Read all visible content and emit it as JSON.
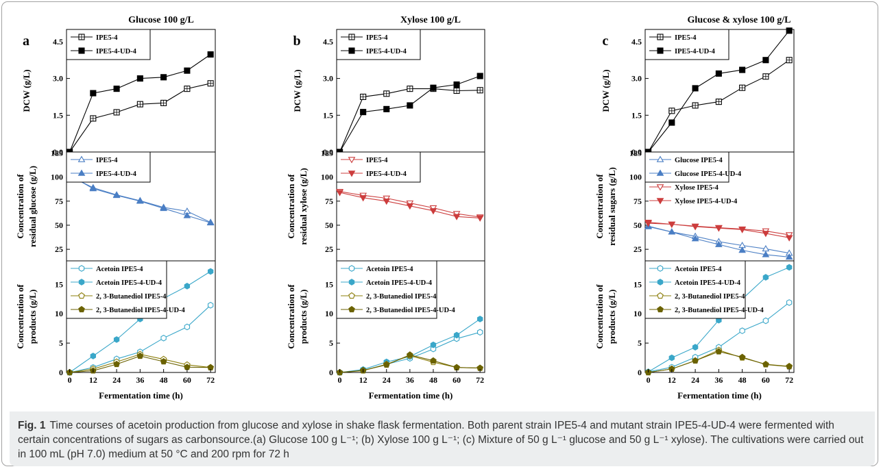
{
  "caption": {
    "label": "Fig. 1",
    "text": "Time courses of acetoin production from glucose and xylose in shake flask fermentation. Both parent strain IPE5-4 and mutant strain IPE5-4-UD-4 were fermented with certain concentrations of sugars as carbonsource.(a) Glucose 100 g L⁻¹; (b) Xylose 100 g L⁻¹; (c) Mixture of 50 g L⁻¹ glucose and 50 g L⁻¹ xylose). The cultivations were carried out in 100 mL (pH 7.0) medium at 50 °C and 200 rpm for 72 h"
  },
  "colors": {
    "black": "#000000",
    "blue": "#4a7ec4",
    "red": "#cc3d3d",
    "cyan": "#3aa7c9",
    "olive": "#8b7d0a",
    "olive_fill": "#6b6200"
  },
  "chart_data": [
    {
      "panel": "a",
      "title": "Glucose 100 g/L",
      "xlabel": "Fermentation time (h)",
      "x": [
        0,
        12,
        24,
        36,
        48,
        60,
        72
      ],
      "xticks": [
        "0",
        "12",
        "24",
        "36",
        "48",
        "60",
        "72"
      ],
      "subplots": [
        {
          "type": "line",
          "ylabel": [
            "DCW (g/L)"
          ],
          "ylim": [
            0,
            5
          ],
          "yticks": [
            "0.0",
            "1.5",
            "3.0",
            "4.5"
          ],
          "series": [
            {
              "name": "IPE5-4",
              "color": "#000000",
              "marker": "square-open",
              "values": [
                0,
                1.37,
                1.62,
                1.95,
                2.0,
                2.58,
                2.8
              ]
            },
            {
              "name": "IPE5-4-UD-4",
              "color": "#000000",
              "marker": "square-filled",
              "values": [
                0,
                2.4,
                2.58,
                3.0,
                3.05,
                3.32,
                3.98
              ]
            }
          ]
        },
        {
          "type": "line",
          "ylabel": [
            "Concentration of",
            "residual glucose (g/L)"
          ],
          "ylim": [
            13,
            126
          ],
          "yticks": [
            "25",
            "50",
            "75",
            "100",
            "125"
          ],
          "series": [
            {
              "name": "IPE5-4",
              "color": "#4a7ec4",
              "marker": "triangle-open",
              "values": [
                101,
                89,
                81.5,
                75.5,
                68.5,
                64.5,
                53
              ]
            },
            {
              "name": "IPE5-4-UD-4",
              "color": "#4a7ec4",
              "marker": "triangle-filled",
              "values": [
                102,
                88,
                81,
                75,
                67.5,
                60,
                52.5
              ]
            }
          ]
        },
        {
          "type": "line",
          "ylabel": [
            "Concentration of",
            "products (g/L)"
          ],
          "ylim": [
            0,
            19
          ],
          "yticks": [
            "0",
            "5",
            "10",
            "15"
          ],
          "series": [
            {
              "name": "Acetoin IPE5-4",
              "color": "#3aa7c9",
              "marker": "hexagon-open",
              "values": [
                0,
                0.85,
                2.3,
                3.5,
                5.85,
                7.75,
                11.45
              ]
            },
            {
              "name": "Acetoin IPE5-4-UD-4",
              "color": "#3aa7c9",
              "marker": "hexagon-filled",
              "values": [
                0,
                2.8,
                5.6,
                9.1,
                12.6,
                14.7,
                17.2
              ]
            },
            {
              "name": "2, 3-Butanediol IPE5-4",
              "color": "#8b7d0a",
              "marker": "pentagon-open",
              "values": [
                0,
                0.6,
                1.8,
                3.1,
                2.25,
                1.3,
                0.85
              ]
            },
            {
              "name": "2, 3-Butanediol IPE5-4-UD-4",
              "color": "#6b6200",
              "marker": "pentagon-filled",
              "values": [
                0,
                0.3,
                1.4,
                2.8,
                1.85,
                0.9,
                0.85
              ]
            }
          ]
        }
      ]
    },
    {
      "panel": "b",
      "title": "Xylose 100 g/L",
      "xlabel": "Fermentation time (h)",
      "x": [
        0,
        12,
        24,
        36,
        48,
        60,
        72
      ],
      "xticks": [
        "0",
        "12",
        "24",
        "36",
        "48",
        "60",
        "72"
      ],
      "subplots": [
        {
          "type": "line",
          "ylabel": [
            "DCW (g/L)"
          ],
          "ylim": [
            0,
            5
          ],
          "yticks": [
            "0.0",
            "1.5",
            "3.0",
            "4.5"
          ],
          "series": [
            {
              "name": "IPE5-4",
              "color": "#000000",
              "marker": "square-open",
              "values": [
                0,
                2.25,
                2.38,
                2.58,
                2.58,
                2.5,
                2.52
              ]
            },
            {
              "name": "IPE5-4-UD-4",
              "color": "#000000",
              "marker": "square-filled",
              "values": [
                0,
                1.63,
                1.75,
                1.9,
                2.62,
                2.75,
                3.1
              ]
            }
          ]
        },
        {
          "type": "line",
          "ylabel": [
            "Concentration of",
            "residual xylose (g/L)"
          ],
          "ylim": [
            13,
            126
          ],
          "yticks": [
            "25",
            "50",
            "75",
            "100",
            "125"
          ],
          "series": [
            {
              "name": "IPE5-4",
              "color": "#cc3d3d",
              "marker": "triangle-down-open",
              "values": [
                85,
                81,
                78,
                73,
                68,
                62,
                58.5
              ]
            },
            {
              "name": "IPE5-4-UD-4",
              "color": "#cc3d3d",
              "marker": "triangle-down-filled",
              "values": [
                84,
                78.5,
                75,
                70,
                65,
                59,
                57.5
              ]
            }
          ]
        },
        {
          "type": "line",
          "ylabel": [
            "Concentration of",
            "products (g/L)"
          ],
          "ylim": [
            0,
            19
          ],
          "yticks": [
            "0",
            "5",
            "10",
            "15"
          ],
          "series": [
            {
              "name": "Acetoin IPE5-4",
              "color": "#3aa7c9",
              "marker": "hexagon-open",
              "values": [
                0,
                0.35,
                1.4,
                2.4,
                4.0,
                5.75,
                6.85
              ]
            },
            {
              "name": "Acetoin IPE5-4-UD-4",
              "color": "#3aa7c9",
              "marker": "hexagon-filled",
              "values": [
                0,
                0.5,
                1.8,
                2.7,
                4.7,
                6.35,
                9.1
              ]
            },
            {
              "name": "2, 3-Butanediol IPE5-4",
              "color": "#8b7d0a",
              "marker": "pentagon-open",
              "values": [
                0,
                0.3,
                1.4,
                2.85,
                1.75,
                0.85,
                0.75
              ]
            },
            {
              "name": "2, 3-Butanediol IPE5-4-UD-4",
              "color": "#6b6200",
              "marker": "pentagon-filled",
              "values": [
                0,
                0.35,
                1.3,
                3.0,
                2.0,
                0.85,
                0.75
              ]
            }
          ]
        }
      ]
    },
    {
      "panel": "c",
      "title": "Glucose & xylose 100 g/L",
      "xlabel": "Fermentation time (h)",
      "x": [
        0,
        12,
        24,
        36,
        48,
        60,
        72
      ],
      "xticks": [
        "0",
        "12",
        "24",
        "36",
        "48",
        "60",
        "72"
      ],
      "subplots": [
        {
          "type": "line",
          "ylabel": [
            "DCW (g/L)"
          ],
          "ylim": [
            0,
            5
          ],
          "yticks": [
            "0.0",
            "1.5",
            "3.0",
            "4.5"
          ],
          "series": [
            {
              "name": "IPE5-4",
              "color": "#000000",
              "marker": "square-open",
              "values": [
                0,
                1.68,
                1.9,
                2.05,
                2.62,
                3.08,
                3.75
              ]
            },
            {
              "name": "IPE5-4-UD-4",
              "color": "#000000",
              "marker": "square-filled",
              "values": [
                0,
                1.2,
                2.6,
                3.2,
                3.35,
                3.75,
                4.95
              ]
            }
          ]
        },
        {
          "type": "line",
          "ylabel": [
            "Concentration of",
            "residual sugars (g/L)"
          ],
          "ylim": [
            13,
            126
          ],
          "yticks": [
            "25",
            "50",
            "75",
            "100",
            "125"
          ],
          "series": [
            {
              "name": "Glucose IPE5-4",
              "color": "#4a7ec4",
              "marker": "triangle-open",
              "values": [
                48.5,
                43,
                38.5,
                33,
                29,
                25.5,
                21
              ]
            },
            {
              "name": "Glucose IPE5-4-UD-4",
              "color": "#4a7ec4",
              "marker": "triangle-filled",
              "values": [
                49,
                43,
                36,
                30,
                24,
                19.5,
                17
              ]
            },
            {
              "name": "Xylose IPE5-4",
              "color": "#cc3d3d",
              "marker": "triangle-down-open",
              "values": [
                52,
                51,
                49,
                47.5,
                46,
                44,
                40
              ]
            },
            {
              "name": "Xylose IPE5-4-UD-4",
              "color": "#cc3d3d",
              "marker": "triangle-down-filled",
              "values": [
                53,
                51,
                48.5,
                47,
                45.5,
                41.5,
                37
              ]
            }
          ]
        },
        {
          "type": "line",
          "ylabel": [
            "Concentration of",
            "products (g/L)"
          ],
          "ylim": [
            0,
            19
          ],
          "yticks": [
            "0",
            "5",
            "10",
            "15"
          ],
          "series": [
            {
              "name": "Acetoin IPE5-4",
              "color": "#3aa7c9",
              "marker": "hexagon-open",
              "values": [
                0.1,
                0.9,
                2.6,
                4.3,
                7.1,
                8.8,
                11.9
              ]
            },
            {
              "name": "Acetoin IPE5-4-UD-4",
              "color": "#3aa7c9",
              "marker": "hexagon-filled",
              "values": [
                0.1,
                2.5,
                4.3,
                8.9,
                12.5,
                16.2,
                17.9
              ]
            },
            {
              "name": "2, 3-Butanediol IPE5-4",
              "color": "#8b7d0a",
              "marker": "pentagon-open",
              "values": [
                0,
                0.6,
                2.0,
                3.8,
                2.5,
                1.4,
                1.05
              ]
            },
            {
              "name": "2, 3-Butanediol IPE5-4-UD-4",
              "color": "#6b6200",
              "marker": "pentagon-filled",
              "values": [
                0,
                0.6,
                2.0,
                3.55,
                2.6,
                1.35,
                1.0
              ]
            }
          ]
        }
      ]
    }
  ]
}
